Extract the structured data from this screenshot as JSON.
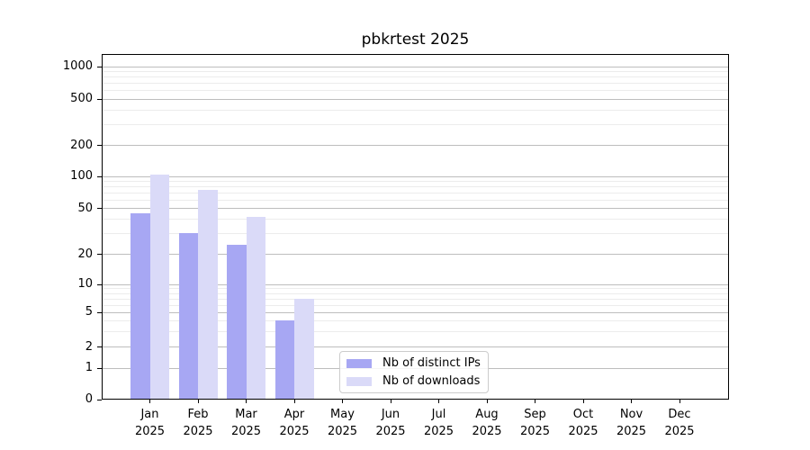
{
  "title": "pbkrtest 2025",
  "colors": {
    "ips": "#a7a7f3",
    "downloads": "#dadaf8",
    "grid_major": "#bdbdbd",
    "grid_minor": "#ececec",
    "axis": "#000000"
  },
  "legend": {
    "items": [
      {
        "key": "ips",
        "label": "Nb of distinct IPs"
      },
      {
        "key": "downloads",
        "label": "Nb of downloads"
      }
    ]
  },
  "chart_data": {
    "type": "bar",
    "title": "pbkrtest 2025",
    "categories": [
      "Jan",
      "Feb",
      "Mar",
      "Apr",
      "May",
      "Jun",
      "Jul",
      "Aug",
      "Sep",
      "Oct",
      "Nov",
      "Dec"
    ],
    "year_label": "2025",
    "series": [
      {
        "name": "Nb of distinct IPs",
        "color_key": "ips",
        "values": [
          45,
          30,
          24,
          4,
          null,
          null,
          null,
          null,
          null,
          null,
          null,
          null
        ]
      },
      {
        "name": "Nb of downloads",
        "color_key": "downloads",
        "values": [
          103,
          74,
          42,
          7,
          null,
          null,
          null,
          null,
          null,
          null,
          null,
          null
        ]
      }
    ],
    "yscale": "log-like (0 baseline, log decades above 1)",
    "y_ticks": [
      0,
      1,
      2,
      5,
      10,
      20,
      50,
      100,
      200,
      500,
      1000
    ],
    "y_minor_ticks": [
      3,
      4,
      6,
      7,
      8,
      9,
      30,
      40,
      60,
      70,
      80,
      90,
      300,
      400,
      600,
      700,
      800,
      900
    ],
    "ylim": [
      0,
      1200
    ],
    "grid": "on",
    "legend_position": "inside-bottom-center"
  }
}
